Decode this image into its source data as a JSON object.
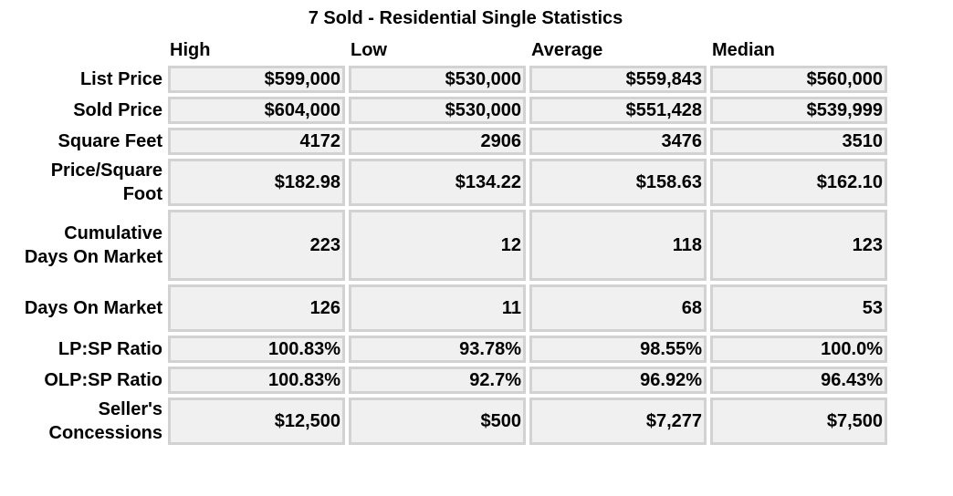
{
  "title": "7 Sold - Residential Single Statistics",
  "columns": [
    "High",
    "Low",
    "Average",
    "Median"
  ],
  "rows": [
    {
      "label": "List Price",
      "values": [
        "$599,000",
        "$530,000",
        "$559,843",
        "$560,000"
      ]
    },
    {
      "label": "Sold Price",
      "values": [
        "$604,000",
        "$530,000",
        "$551,428",
        "$539,999"
      ]
    },
    {
      "label": "Square Feet",
      "values": [
        "4172",
        "2906",
        "3476",
        "3510"
      ]
    },
    {
      "label": "Price/Square Foot",
      "values": [
        "$182.98",
        "$134.22",
        "$158.63",
        "$162.10"
      ]
    },
    {
      "label": "Cumulative Days On Market",
      "values": [
        "223",
        "12",
        "118",
        "123"
      ]
    },
    {
      "label": "Days On Market",
      "values": [
        "126",
        "11",
        "68",
        "53"
      ]
    },
    {
      "label": "LP:SP Ratio",
      "values": [
        "100.83%",
        "93.78%",
        "98.55%",
        "100.0%"
      ]
    },
    {
      "label": "OLP:SP Ratio",
      "values": [
        "100.83%",
        "92.7%",
        "96.92%",
        "96.43%"
      ]
    },
    {
      "label": "Seller's Concessions",
      "values": [
        "$12,500",
        "$500",
        "$7,277",
        "$7,500"
      ]
    }
  ]
}
